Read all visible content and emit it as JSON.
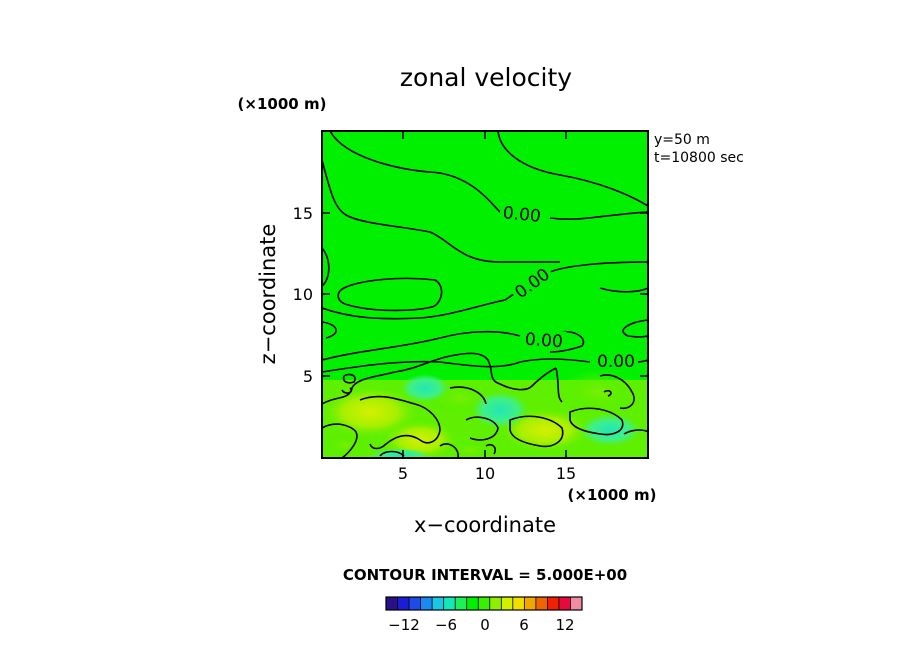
{
  "chart_data": {
    "type": "heatmap",
    "title": "zonal velocity",
    "xlabel": "x−coordinate",
    "ylabel": "z−coordinate",
    "x_unit": "(×1000 m)",
    "y_unit": "(×1000 m)",
    "xlim": [
      0,
      20
    ],
    "ylim": [
      0,
      20
    ],
    "x_ticks": [
      "5",
      "10",
      "15"
    ],
    "y_ticks": [
      "5",
      "10",
      "15"
    ],
    "info": [
      "y=50  m",
      "t=10800 sec"
    ],
    "contour_interval_text": "CONTOUR INTERVAL = 5.000E+00",
    "contour_labels": [
      "0.00",
      "0.00",
      "0.00",
      "0.00"
    ],
    "colorbar": {
      "tick_labels": [
        "−12",
        "−6",
        "0",
        "6",
        "12"
      ],
      "colors": [
        "#2a0f86",
        "#1c1cd4",
        "#1e4be8",
        "#1a8af0",
        "#18c8e6",
        "#12e8b8",
        "#1ef05a",
        "#00f000",
        "#38f000",
        "#8ef000",
        "#d2f000",
        "#f0e000",
        "#f0a800",
        "#f06400",
        "#f02000",
        "#e60a3c",
        "#f08ca0"
      ]
    },
    "grid": false,
    "legend": "none"
  }
}
